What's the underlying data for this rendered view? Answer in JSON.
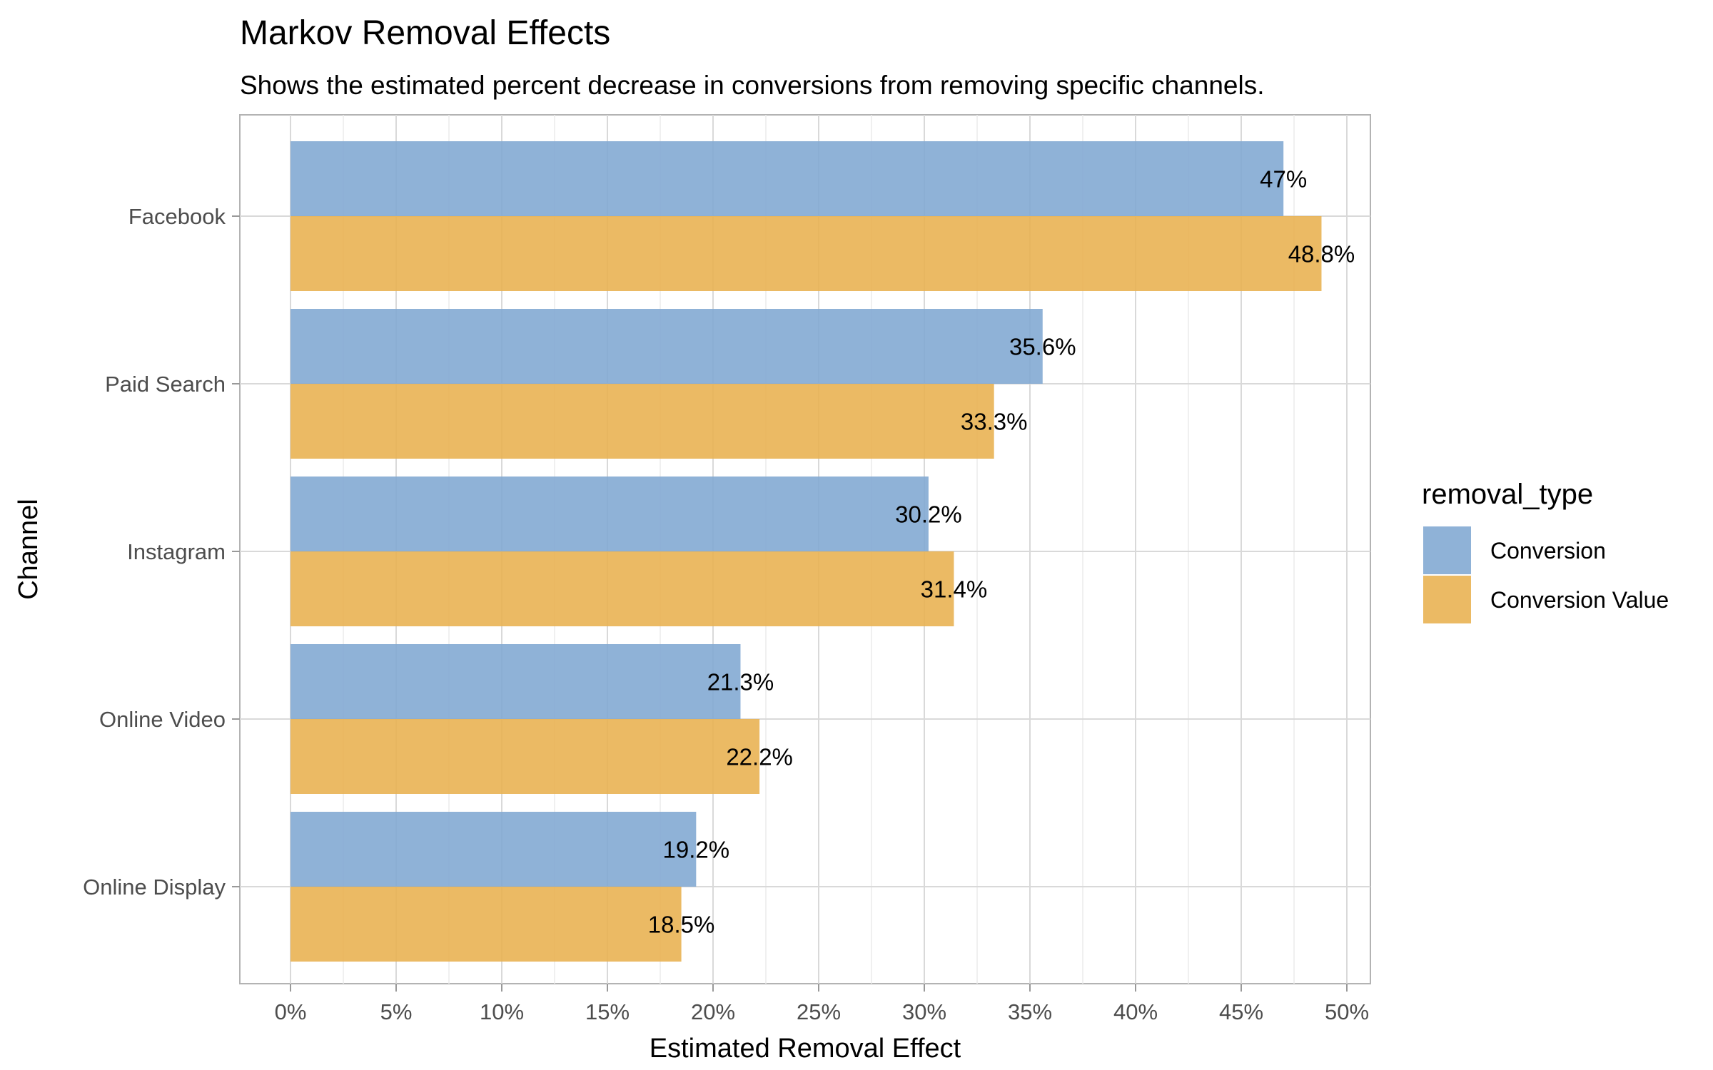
{
  "chart_data": {
    "type": "bar",
    "orientation": "horizontal",
    "title": "Markov Removal Effects",
    "subtitle": "Shows the estimated percent decrease in conversions from removing specific channels.",
    "xlabel": "Estimated Removal Effect",
    "ylabel": "Channel",
    "xlim": [
      0,
      50
    ],
    "x_ticks": [
      "0%",
      "5%",
      "10%",
      "15%",
      "20%",
      "25%",
      "30%",
      "35%",
      "40%",
      "45%",
      "50%"
    ],
    "grid": true,
    "categories": [
      "Facebook",
      "Paid Search",
      "Instagram",
      "Online Video",
      "Online Display"
    ],
    "series": [
      {
        "name": "Conversion",
        "color": "#7fa7d1",
        "values": [
          47.0,
          35.6,
          30.2,
          21.3,
          19.2
        ],
        "labels": [
          "47%",
          "35.6%",
          "30.2%",
          "21.3%",
          "19.2%"
        ]
      },
      {
        "name": "Conversion Value",
        "color": "#e8b14e",
        "values": [
          48.8,
          33.3,
          31.4,
          22.2,
          18.5
        ],
        "labels": [
          "48.8%",
          "33.3%",
          "31.4%",
          "22.2%",
          "18.5%"
        ]
      }
    ],
    "legend": {
      "title": "removal_type",
      "position": "right"
    }
  }
}
